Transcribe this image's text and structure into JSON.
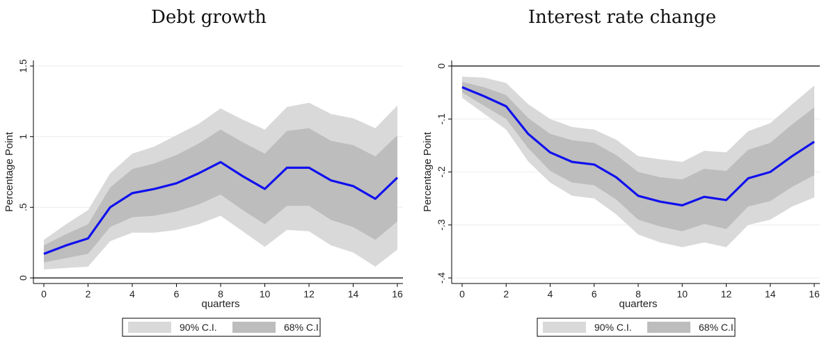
{
  "chart_data": [
    {
      "type": "line",
      "title": "Debt growth",
      "xlabel": "quarters",
      "ylabel": "Percentage Point",
      "xlim": [
        0,
        16
      ],
      "ylim": [
        0,
        1.5
      ],
      "xticks": [
        0,
        2,
        4,
        6,
        8,
        10,
        12,
        14,
        16
      ],
      "xtick_labels": [
        "0",
        "2",
        "4",
        "6",
        "8",
        "10",
        "12",
        "14",
        "16"
      ],
      "yticks": [
        0,
        0.5,
        1,
        1.5
      ],
      "ytick_labels": [
        "0",
        ".5",
        "1",
        "1.5"
      ],
      "zero_line": 0,
      "grid": true,
      "legend_position": "bottom",
      "x": [
        0,
        1,
        2,
        3,
        4,
        5,
        6,
        7,
        8,
        9,
        10,
        11,
        12,
        13,
        14,
        15,
        16
      ],
      "series": [
        {
          "name": "",
          "kind": "line",
          "color": "#1010ee",
          "values": [
            0.17,
            0.23,
            0.28,
            0.5,
            0.6,
            0.63,
            0.67,
            0.74,
            0.82,
            0.72,
            0.63,
            0.78,
            0.78,
            0.69,
            0.65,
            0.56,
            0.71
          ]
        },
        {
          "name": "90% C.I.",
          "kind": "band",
          "color": "#d9d9d9",
          "lower": [
            0.06,
            0.07,
            0.08,
            0.26,
            0.32,
            0.32,
            0.34,
            0.38,
            0.44,
            0.33,
            0.22,
            0.34,
            0.33,
            0.23,
            0.18,
            0.08,
            0.2
          ],
          "upper": [
            0.27,
            0.38,
            0.48,
            0.74,
            0.88,
            0.93,
            1.01,
            1.09,
            1.2,
            1.12,
            1.05,
            1.21,
            1.24,
            1.16,
            1.13,
            1.06,
            1.22
          ]
        },
        {
          "name": "68% C.I.",
          "kind": "band",
          "color": "#bdbdbd",
          "lower": [
            0.11,
            0.14,
            0.17,
            0.36,
            0.43,
            0.44,
            0.47,
            0.52,
            0.59,
            0.48,
            0.38,
            0.51,
            0.51,
            0.41,
            0.36,
            0.27,
            0.4
          ],
          "upper": [
            0.23,
            0.31,
            0.38,
            0.64,
            0.77,
            0.81,
            0.87,
            0.95,
            1.05,
            0.96,
            0.88,
            1.04,
            1.06,
            0.97,
            0.94,
            0.86,
            1.01
          ]
        }
      ]
    },
    {
      "type": "line",
      "title": "Interest rate change",
      "xlabel": "quarters",
      "ylabel": "Percentage Point",
      "xlim": [
        0,
        16
      ],
      "ylim": [
        -0.4,
        0
      ],
      "xticks": [
        0,
        2,
        4,
        6,
        8,
        10,
        12,
        14,
        16
      ],
      "xtick_labels": [
        "0",
        "2",
        "4",
        "6",
        "8",
        "10",
        "12",
        "14",
        "16"
      ],
      "yticks": [
        -0.4,
        -0.3,
        -0.2,
        -0.1,
        0
      ],
      "ytick_labels": [
        "-.4",
        "-.3",
        "-.2",
        "-.1",
        "0"
      ],
      "zero_line": 0,
      "grid": true,
      "legend_position": "bottom",
      "x": [
        0,
        1,
        2,
        3,
        4,
        5,
        6,
        7,
        8,
        9,
        10,
        11,
        12,
        13,
        14,
        15,
        16
      ],
      "series": [
        {
          "name": "",
          "kind": "line",
          "color": "#1010ee",
          "values": [
            -0.04,
            -0.057,
            -0.076,
            -0.128,
            -0.163,
            -0.181,
            -0.186,
            -0.21,
            -0.245,
            -0.256,
            -0.263,
            -0.247,
            -0.253,
            -0.212,
            -0.2,
            -0.17,
            -0.143
          ]
        },
        {
          "name": "90% C.I.",
          "kind": "band",
          "color": "#d9d9d9",
          "lower": [
            -0.06,
            -0.09,
            -0.12,
            -0.18,
            -0.22,
            -0.245,
            -0.25,
            -0.28,
            -0.318,
            -0.333,
            -0.342,
            -0.333,
            -0.342,
            -0.3,
            -0.29,
            -0.265,
            -0.248
          ],
          "upper": [
            -0.02,
            -0.022,
            -0.032,
            -0.072,
            -0.1,
            -0.115,
            -0.12,
            -0.139,
            -0.17,
            -0.176,
            -0.181,
            -0.16,
            -0.163,
            -0.123,
            -0.108,
            -0.072,
            -0.037
          ]
        },
        {
          "name": "68% C.I.",
          "kind": "band",
          "color": "#bdbdbd",
          "lower": [
            -0.05,
            -0.075,
            -0.1,
            -0.155,
            -0.198,
            -0.22,
            -0.225,
            -0.252,
            -0.29,
            -0.303,
            -0.312,
            -0.298,
            -0.308,
            -0.265,
            -0.255,
            -0.228,
            -0.206
          ],
          "upper": [
            -0.03,
            -0.04,
            -0.055,
            -0.098,
            -0.128,
            -0.14,
            -0.145,
            -0.168,
            -0.2,
            -0.21,
            -0.214,
            -0.194,
            -0.198,
            -0.158,
            -0.145,
            -0.11,
            -0.078
          ]
        }
      ]
    }
  ]
}
